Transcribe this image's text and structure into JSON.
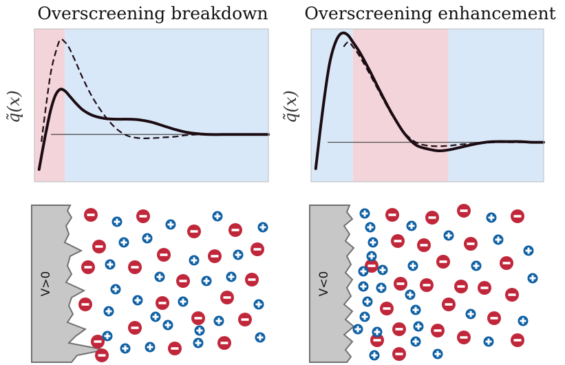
{
  "panels": [
    {
      "title": "Overscreening breakdown",
      "y_label": "q̃(x)",
      "electrode_label": "V>0",
      "regions": [
        {
          "from": 0.0,
          "to": 0.13,
          "color": "#f2d4da"
        },
        {
          "from": 0.13,
          "to": 1.0,
          "color": "#d9e8f8"
        }
      ],
      "chart_data": {
        "type": "line",
        "x_range": [
          0,
          1
        ],
        "y_range": [
          -0.65,
          1.45
        ],
        "baseline": 0,
        "series": [
          {
            "name": "solid",
            "style": "solid",
            "x": [
              0.02,
              0.03,
              0.05,
              0.07,
              0.09,
              0.11,
              0.13,
              0.15,
              0.18,
              0.21,
              0.25,
              0.3,
              0.35,
              0.4,
              0.45,
              0.5,
              0.55,
              0.6,
              0.65,
              0.7,
              0.75,
              0.8,
              0.85,
              0.9,
              0.95,
              1.0
            ],
            "y": [
              -0.48,
              -0.3,
              0.04,
              0.34,
              0.54,
              0.62,
              0.6,
              0.53,
              0.42,
              0.33,
              0.26,
              0.22,
              0.21,
              0.21,
              0.2,
              0.17,
              0.12,
              0.07,
              0.03,
              0.01,
              0.0,
              0.0,
              0.0,
              0.0,
              0.0,
              0.0
            ]
          },
          {
            "name": "dashed",
            "style": "dashed",
            "x": [
              0.03,
              0.05,
              0.07,
              0.09,
              0.11,
              0.13,
              0.15,
              0.18,
              0.21,
              0.25,
              0.3,
              0.35,
              0.4,
              0.45,
              0.5,
              0.55,
              0.6,
              0.65,
              0.7,
              0.75,
              0.8,
              0.85,
              0.9,
              0.95,
              1.0
            ],
            "y": [
              -0.1,
              0.4,
              0.85,
              1.12,
              1.3,
              1.27,
              1.18,
              0.97,
              0.75,
              0.5,
              0.26,
              0.08,
              -0.02,
              -0.05,
              -0.05,
              -0.04,
              -0.03,
              -0.01,
              0.0,
              0.0,
              0.0,
              0.0,
              0.0,
              0.0,
              0.0
            ]
          }
        ]
      }
    },
    {
      "title": "Overscreening enhancement",
      "y_label": "q̃(x)",
      "electrode_label": "V<0",
      "regions": [
        {
          "from": 0.0,
          "to": 0.18,
          "color": "#d9e8f8"
        },
        {
          "from": 0.18,
          "to": 0.59,
          "color": "#f2d4da"
        },
        {
          "from": 0.59,
          "to": 1.0,
          "color": "#d9e8f8"
        }
      ],
      "chart_data": {
        "type": "line",
        "x_range": [
          0,
          1
        ],
        "y_range": [
          -0.6,
          1.72
        ],
        "baseline": 0,
        "series": [
          {
            "name": "solid",
            "style": "solid",
            "x": [
              0.02,
              0.04,
              0.06,
              0.08,
              0.1,
              0.12,
              0.14,
              0.16,
              0.18,
              0.21,
              0.25,
              0.3,
              0.35,
              0.4,
              0.45,
              0.5,
              0.55,
              0.6,
              0.65,
              0.7,
              0.75,
              0.8,
              0.85,
              0.9,
              0.95,
              1.0
            ],
            "y": [
              -0.4,
              0.2,
              0.75,
              1.2,
              1.47,
              1.62,
              1.66,
              1.62,
              1.52,
              1.36,
              1.1,
              0.75,
              0.42,
              0.14,
              -0.04,
              -0.1,
              -0.13,
              -0.11,
              -0.07,
              -0.03,
              0.0,
              0.01,
              0.01,
              0.01,
              0.0,
              0.0
            ]
          },
          {
            "name": "dashed",
            "style": "dashed",
            "x": [
              0.14,
              0.16,
              0.18,
              0.21,
              0.25,
              0.3,
              0.35,
              0.4,
              0.45,
              0.5,
              0.55,
              0.6,
              0.65,
              0.7,
              0.75,
              0.8,
              0.85,
              0.9,
              0.95,
              1.0
            ],
            "y": [
              1.45,
              1.52,
              1.45,
              1.3,
              1.05,
              0.72,
              0.4,
              0.15,
              0.0,
              -0.05,
              -0.06,
              -0.05,
              -0.03,
              -0.02,
              -0.01,
              0.0,
              0.0,
              0.0,
              0.0,
              0.0
            ]
          }
        ]
      }
    }
  ],
  "ions": {
    "anion": {
      "sign": "−",
      "color": "#c0273a"
    },
    "cation": {
      "sign": "+",
      "color": "#0e5fa3"
    }
  },
  "colors": {
    "electrode_fill": "#c7c7c7",
    "electrode_edge": "#707070",
    "curve": "#1b0b12",
    "axis_line": "#444444"
  }
}
